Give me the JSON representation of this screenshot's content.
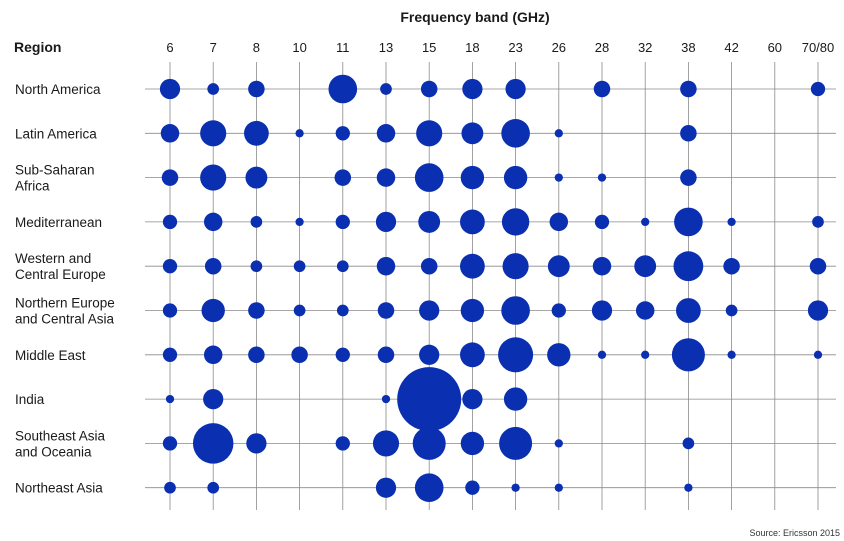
{
  "chart_data": {
    "type": "scatter",
    "title": "Frequency band (GHz)",
    "row_header": "Region",
    "source": "Source: Ericsson 2015",
    "x": [
      "6",
      "7",
      "8",
      "10",
      "11",
      "13",
      "15",
      "18",
      "23",
      "26",
      "28",
      "32",
      "38",
      "42",
      "60",
      "70/80"
    ],
    "y": [
      [
        "North America"
      ],
      [
        "Latin America"
      ],
      [
        "Sub-Saharan",
        "Africa"
      ],
      [
        "Mediterranean"
      ],
      [
        "Western and",
        "Central Europe"
      ],
      [
        "Northern Europe",
        "and Central Asia"
      ],
      [
        "Middle East"
      ],
      [
        "India"
      ],
      [
        "Southeast Asia",
        "and Oceania"
      ],
      [
        "Northeast Asia"
      ]
    ],
    "values": [
      [
        3,
        1,
        2,
        0,
        6,
        1,
        2,
        3,
        3,
        0,
        2,
        0,
        2,
        0,
        0,
        1.5
      ],
      [
        2.5,
        5,
        4.5,
        0.5,
        1.5,
        2.5,
        5,
        3.5,
        6,
        0.5,
        0,
        0,
        2,
        0,
        0,
        0
      ],
      [
        2,
        5,
        3.5,
        0,
        2,
        2.5,
        6,
        4,
        4,
        0.5,
        0.5,
        0,
        2,
        0,
        0,
        0
      ],
      [
        1.5,
        2.5,
        1,
        0.5,
        1.5,
        3,
        3.5,
        4.5,
        5.5,
        2.5,
        1.5,
        0.5,
        6,
        0.5,
        0,
        1
      ],
      [
        1.5,
        2,
        1,
        1,
        1,
        2.5,
        2,
        4.5,
        5,
        3.5,
        2.5,
        3.5,
        6.5,
        2,
        0,
        2
      ],
      [
        1.5,
        4,
        2,
        1,
        1,
        2,
        3,
        4,
        6,
        1.5,
        3,
        2.5,
        4.5,
        1,
        0,
        3
      ],
      [
        1.5,
        2.5,
        2,
        2,
        1.5,
        2,
        3,
        4.5,
        9,
        4,
        0.5,
        0.5,
        8,
        0.5,
        0,
        0.5
      ],
      [
        0.5,
        3,
        0,
        0,
        0,
        0.5,
        30,
        3,
        4,
        0,
        0,
        0,
        0,
        0,
        0,
        0
      ],
      [
        1.5,
        12,
        3,
        0,
        1.5,
        5,
        8,
        4,
        8,
        0.5,
        0,
        0,
        1,
        0,
        0,
        0
      ],
      [
        1,
        1,
        0,
        0,
        0,
        3,
        6,
        1.5,
        0.5,
        0.5,
        0,
        0,
        0.5,
        0,
        0,
        0
      ]
    ],
    "marker_color": "#0a2fb0",
    "grid": true,
    "grid_color": "#8a8a8a"
  }
}
